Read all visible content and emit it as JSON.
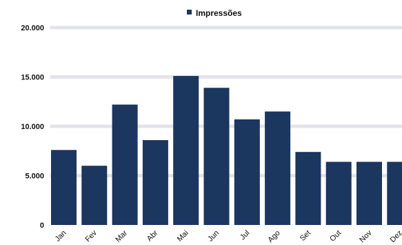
{
  "chart_data": {
    "type": "bar",
    "categories": [
      "Jan",
      "Fev",
      "Mar",
      "Abr",
      "Mai",
      "Jun",
      "Jul",
      "Ago",
      "Set",
      "Out",
      "Nov",
      "Dez"
    ],
    "series": [
      {
        "name": "Impressões",
        "values": [
          7600,
          6000,
          12200,
          8600,
          15100,
          13900,
          10700,
          11500,
          7400,
          6400,
          6400,
          6400
        ]
      }
    ],
    "ylim": [
      0,
      20000
    ],
    "y_ticks": [
      "0",
      "5.000",
      "10.000",
      "15.000",
      "20.000"
    ],
    "y_tick_values": [
      0,
      5000,
      10000,
      15000,
      20000
    ],
    "grid": true,
    "legend_position": "top-center",
    "title": "",
    "xlabel": "",
    "ylabel": ""
  },
  "colors": {
    "bar": "#1b365f",
    "grid": "#e3e3ea",
    "background": "#ffffff"
  }
}
